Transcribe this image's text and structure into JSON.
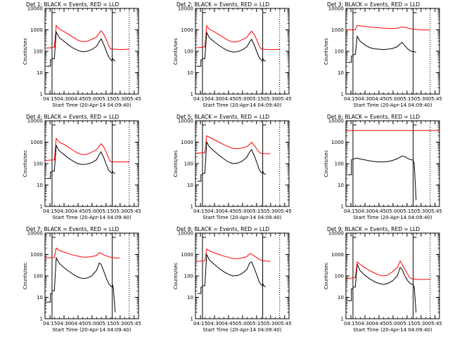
{
  "chart_data": {
    "type": "line",
    "layout": "3x3 grid",
    "ylabel": "Counts/sec",
    "xlabel": "Start Time (20-Apr-14 04:09:40)",
    "x_tick_labels": [
      "04:15",
      "04:30",
      "04:45",
      "05:00",
      "05:15",
      "05:30",
      "05:45"
    ],
    "y_tick_labels": [
      "1",
      "10",
      "100",
      "1000",
      "10000"
    ],
    "ylim": [
      1,
      10000
    ],
    "yscale": "log",
    "x_units": "minutes after 04:09:40",
    "xlim": [
      0,
      100
    ],
    "colors": {
      "events": "#000000",
      "lld": "#ff0000",
      "axis": "#000000"
    },
    "panels": [
      {
        "title": "Det 1: BLACK = Events, RED = LLD",
        "series": [
          {
            "name": "Events",
            "x": [
              2,
              5.9,
              5.9,
              7.5,
              7.5,
              10,
              12,
              15,
              20,
              25,
              30,
              35,
              40,
              45,
              50,
              55,
              58,
              60,
              63,
              66,
              68,
              70,
              71.9,
              71.9,
              73,
              75
            ],
            "y": [
              20,
              20,
              40,
              40,
              45,
              45,
              800,
              450,
              300,
              200,
              140,
              110,
              95,
              100,
              120,
              170,
              280,
              380,
              200,
              90,
              55,
              42,
              35,
              50,
              40,
              35
            ]
          },
          {
            "name": "LLD",
            "x": [
              0,
              5,
              10,
              12,
              15,
              20,
              25,
              30,
              35,
              40,
              45,
              50,
              55,
              58,
              60,
              63,
              66,
              68,
              70,
              72,
              75,
              80,
              90
            ],
            "y": [
              140,
              145,
              155,
              1600,
              1100,
              850,
              620,
              450,
              330,
              280,
              290,
              360,
              460,
              700,
              900,
              600,
              320,
              190,
              130,
              125,
              125,
              120,
              125
            ]
          }
        ]
      },
      {
        "title": "Det 2: BLACK = Events, RED = LLD",
        "series": [
          {
            "name": "Events",
            "x": [
              2,
              5.9,
              5.9,
              7.5,
              7.5,
              10,
              12,
              15,
              20,
              25,
              30,
              35,
              40,
              45,
              50,
              55,
              58,
              60,
              63,
              66,
              68,
              70,
              71.9,
              71.9,
              73,
              75
            ],
            "y": [
              20,
              20,
              40,
              40,
              45,
              45,
              750,
              420,
              280,
              190,
              135,
              105,
              92,
              95,
              115,
              160,
              270,
              360,
              190,
              85,
              52,
              40,
              34,
              48,
              38,
              34
            ]
          },
          {
            "name": "LLD",
            "x": [
              0,
              5,
              10,
              12,
              15,
              20,
              25,
              30,
              35,
              40,
              45,
              50,
              55,
              58,
              60,
              63,
              66,
              68,
              70,
              72,
              75,
              80,
              90
            ],
            "y": [
              145,
              150,
              160,
              1550,
              1050,
              820,
              600,
              440,
              320,
              270,
              280,
              350,
              450,
              680,
              880,
              590,
              310,
              185,
              130,
              125,
              122,
              120,
              122
            ]
          }
        ]
      },
      {
        "title": "Det 3: BLACK = Events, RED = LLD",
        "series": [
          {
            "name": "Events",
            "x": [
              2,
              5.9,
              5.9,
              7.5,
              7.5,
              10,
              12,
              15,
              20,
              25,
              30,
              35,
              40,
              45,
              50,
              55,
              58,
              60,
              63,
              66,
              68,
              70,
              71.9,
              71.9,
              73,
              75
            ],
            "y": [
              30,
              30,
              60,
              60,
              70,
              70,
              500,
              300,
              200,
              150,
              130,
              125,
              120,
              125,
              135,
              165,
              220,
              260,
              180,
              130,
              110,
              100,
              95,
              100,
              95,
              90
            ]
          },
          {
            "name": "LLD",
            "x": [
              0,
              10,
              12,
              15,
              20,
              30,
              40,
              50,
              55,
              60,
              65,
              70,
              75,
              80,
              90
            ],
            "y": [
              1000,
              1000,
              1600,
              1550,
              1450,
              1300,
              1200,
              1150,
              1200,
              1350,
              1250,
              1100,
              1050,
              1000,
              980
            ]
          }
        ]
      },
      {
        "title": "Det 4: BLACK = Events, RED = LLD",
        "series": [
          {
            "name": "Events",
            "x": [
              2,
              5.9,
              5.9,
              7.5,
              7.5,
              10,
              12,
              15,
              20,
              25,
              30,
              35,
              40,
              45,
              50,
              55,
              58,
              60,
              63,
              66,
              68,
              70,
              71.9,
              71.9,
              73,
              75
            ],
            "y": [
              20,
              20,
              40,
              40,
              45,
              45,
              700,
              400,
              270,
              180,
              130,
              100,
              90,
              95,
              110,
              150,
              260,
              350,
              180,
              80,
              50,
              40,
              35,
              45,
              38,
              34
            ]
          },
          {
            "name": "LLD",
            "x": [
              0,
              5,
              10,
              12,
              15,
              20,
              25,
              30,
              35,
              40,
              45,
              50,
              55,
              58,
              60,
              63,
              66,
              68,
              70,
              72,
              75,
              80,
              90
            ],
            "y": [
              140,
              145,
              150,
              1500,
              1000,
              800,
              580,
              420,
              310,
              260,
              270,
              340,
              440,
              660,
              850,
              580,
              300,
              180,
              125,
              120,
              120,
              118,
              120
            ]
          }
        ]
      },
      {
        "title": "Det 5: BLACK = Events, RED = LLD",
        "series": [
          {
            "name": "Events",
            "x": [
              2,
              5.9,
              5.9,
              7.5,
              7.5,
              10,
              12,
              15,
              20,
              25,
              30,
              35,
              40,
              45,
              50,
              55,
              58,
              60,
              63,
              66,
              68,
              70,
              71.9,
              71.9,
              73,
              75
            ],
            "y": [
              15,
              15,
              30,
              30,
              35,
              35,
              1000,
              600,
              380,
              250,
              170,
              120,
              100,
              105,
              130,
              200,
              350,
              450,
              230,
              100,
              55,
              40,
              35,
              45,
              35,
              30
            ]
          },
          {
            "name": "LLD",
            "x": [
              0,
              10,
              12,
              15,
              20,
              25,
              30,
              35,
              40,
              45,
              50,
              55,
              58,
              60,
              63,
              66,
              68,
              70,
              72,
              75,
              80
            ],
            "y": [
              300,
              320,
              2000,
              1700,
              1300,
              1000,
              780,
              620,
              520,
              500,
              540,
              620,
              800,
              1000,
              700,
              450,
              350,
              300,
              290,
              290,
              290
            ]
          }
        ]
      },
      {
        "title": "Det 6: BLACK = Events, RED = LLD",
        "series": [
          {
            "name": "Events",
            "x": [
              2,
              5.9,
              5.9,
              7.5,
              7.5,
              10,
              12,
              15,
              20,
              25,
              30,
              35,
              40,
              45,
              50,
              55,
              58,
              60,
              63,
              66,
              68,
              70,
              71.9,
              71.9,
              73,
              75
            ],
            "y": [
              30,
              30,
              150,
              150,
              170,
              170,
              180,
              165,
              150,
              135,
              125,
              120,
              120,
              125,
              140,
              170,
              200,
              230,
              210,
              175,
              160,
              150,
              145,
              140,
              100,
              2
            ]
          },
          {
            "name": "LLD",
            "x": [
              0,
              100
            ],
            "y": [
              3500,
              3500
            ]
          }
        ]
      },
      {
        "title": "Det 7: BLACK = Events, RED = LLD",
        "series": [
          {
            "name": "Events",
            "x": [
              2,
              5.9,
              5.9,
              7.5,
              7.5,
              10,
              12,
              15,
              20,
              25,
              30,
              35,
              40,
              45,
              50,
              55,
              58,
              60,
              63,
              66,
              68,
              70,
              71.9,
              71.9,
              73,
              75
            ],
            "y": [
              6,
              6,
              15,
              15,
              20,
              20,
              700,
              400,
              250,
              170,
              120,
              90,
              75,
              80,
              100,
              180,
              400,
              350,
              160,
              70,
              45,
              35,
              30,
              40,
              30,
              2
            ]
          },
          {
            "name": "LLD",
            "x": [
              0,
              10,
              12,
              15,
              20,
              25,
              30,
              35,
              40,
              45,
              50,
              55,
              58,
              60,
              63,
              66,
              68,
              70,
              72,
              75,
              80
            ],
            "y": [
              700,
              720,
              2000,
              1600,
              1300,
              1100,
              950,
              850,
              760,
              750,
              800,
              900,
              1200,
              1150,
              950,
              850,
              800,
              750,
              720,
              700,
              680
            ]
          }
        ]
      },
      {
        "title": "Det 8: BLACK = Events, RED = LLD",
        "series": [
          {
            "name": "Events",
            "x": [
              2,
              5.9,
              5.9,
              7.5,
              7.5,
              10,
              12,
              15,
              20,
              25,
              30,
              35,
              40,
              45,
              50,
              55,
              58,
              60,
              63,
              66,
              68,
              70,
              71.9,
              71.9,
              73,
              75
            ],
            "y": [
              15,
              15,
              30,
              30,
              35,
              35,
              1000,
              550,
              350,
              230,
              160,
              120,
              100,
              105,
              130,
              200,
              400,
              450,
              220,
              100,
              55,
              40,
              35,
              45,
              35,
              30
            ]
          },
          {
            "name": "LLD",
            "x": [
              0,
              10,
              12,
              15,
              20,
              25,
              30,
              35,
              40,
              45,
              50,
              55,
              58,
              60,
              63,
              66,
              68,
              70,
              72,
              75,
              80
            ],
            "y": [
              480,
              500,
              1800,
              1500,
              1200,
              1000,
              850,
              750,
              650,
              640,
              700,
              800,
              1100,
              1050,
              850,
              700,
              600,
              550,
              520,
              500,
              480
            ]
          }
        ]
      },
      {
        "title": "Det 9: BLACK = Events, RED = LLD",
        "series": [
          {
            "name": "Events",
            "x": [
              2,
              5.9,
              5.9,
              7.5,
              7.5,
              10,
              12,
              15,
              20,
              25,
              30,
              35,
              40,
              45,
              50,
              55,
              58,
              60,
              63,
              66,
              68,
              70,
              71.9,
              71.9,
              73,
              75
            ],
            "y": [
              7,
              7,
              25,
              25,
              30,
              30,
              350,
              180,
              110,
              75,
              55,
              45,
              40,
              45,
              60,
              100,
              250,
              200,
              100,
              60,
              48,
              42,
              40,
              38,
              30,
              2
            ]
          },
          {
            "name": "LLD",
            "x": [
              0,
              5,
              10,
              12,
              15,
              20,
              25,
              30,
              35,
              40,
              45,
              50,
              55,
              58,
              60,
              63,
              66,
              68,
              70,
              72,
              75,
              80,
              90
            ],
            "y": [
              75,
              78,
              85,
              450,
              350,
              250,
              180,
              140,
              110,
              100,
              110,
              160,
              250,
              500,
              350,
              200,
              120,
              85,
              75,
              72,
              70,
              68,
              70
            ]
          }
        ]
      }
    ]
  }
}
